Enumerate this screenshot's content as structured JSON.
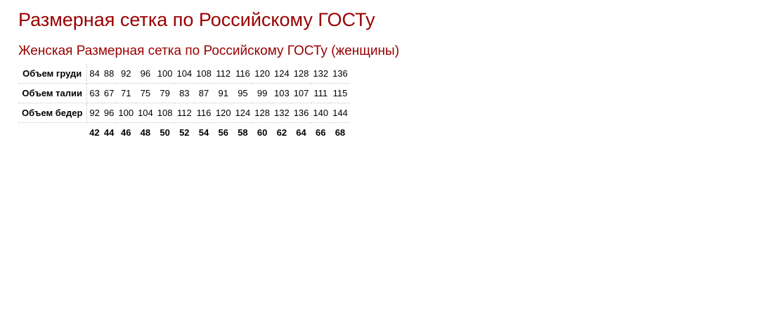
{
  "title": "Размерная сетка по Российскому ГОСТу",
  "subtitle": "Женская Размерная сетка по Российскому ГОСТу (женщины)",
  "table": {
    "rows": [
      {
        "label": "Объем груди",
        "values": [
          "84",
          "88",
          "92",
          "96",
          "100",
          "104",
          "108",
          "112",
          "116",
          "120",
          "124",
          "128",
          "132",
          "136"
        ]
      },
      {
        "label": "Объем талии",
        "values": [
          "63",
          "67",
          "71",
          "75",
          "79",
          "83",
          "87",
          "91",
          "95",
          "99",
          "103",
          "107",
          "111",
          "115"
        ]
      },
      {
        "label": "Объем бедер",
        "values": [
          "92",
          "96",
          "100",
          "104",
          "108",
          "112",
          "116",
          "120",
          "124",
          "128",
          "132",
          "136",
          "140",
          "144"
        ]
      }
    ],
    "sizes": [
      "42",
      "44",
      "46",
      "48",
      "50",
      "52",
      "54",
      "56",
      "58",
      "60",
      "62",
      "64",
      "66",
      "68"
    ]
  },
  "colors": {
    "heading": "#990000"
  }
}
